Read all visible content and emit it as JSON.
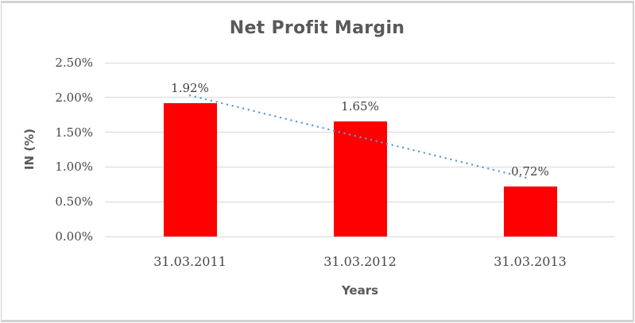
{
  "chart_data": {
    "type": "bar",
    "title": "Net Profit Margin",
    "xlabel": "Years",
    "ylabel": "IN (%)",
    "categories": [
      "31.03.2011",
      "31.03.2012",
      "31.03.2013"
    ],
    "values": [
      1.92,
      1.65,
      0.72
    ],
    "data_labels": [
      "1.92%",
      "1.65%",
      "0.72%"
    ],
    "ylim": [
      0,
      2.5
    ],
    "ytick_step": 0.5,
    "ytick_labels": [
      "0.00%",
      "0.50%",
      "1.00%",
      "1.50%",
      "2.00%",
      "2.50%"
    ],
    "grid": true,
    "legend": "none",
    "series_name": "Net Profit Margin",
    "trendline": {
      "shape": "linear",
      "style": "dotted",
      "fitted_endpoints_percent": [
        2.03,
        0.83
      ]
    }
  },
  "colors": {
    "bar": "#ff0000",
    "trendline": "#5b9bd5",
    "title_text": "#595959",
    "axis_title_text": "#595959",
    "tick_text": "#474747",
    "data_label_text": "#404040",
    "gridline": "#d9d9d9",
    "frame_border": "#d2d2d2",
    "background": "#ffffff"
  }
}
